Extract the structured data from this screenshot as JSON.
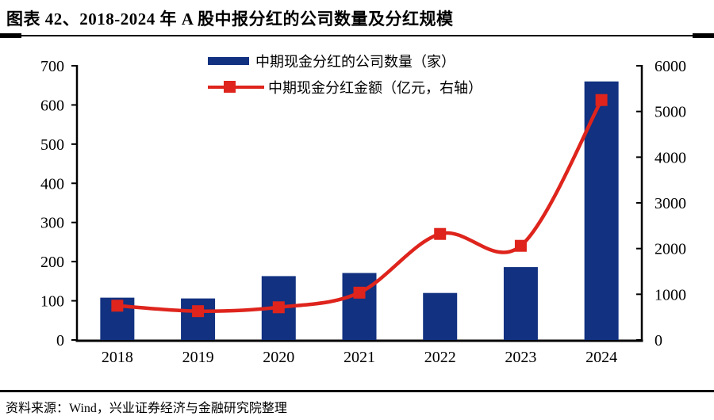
{
  "figure_title": "图表 42、2018-2024 年 A 股中报分红的公司数量及分红规模",
  "source_note": "资料来源：Wind，兴业证券经济与金融研究院整理",
  "colors": {
    "bar": "#123180",
    "line": "#de241c",
    "axis": "#000000",
    "text": "#000000"
  },
  "chart_data": {
    "type": "bar+line",
    "title": "2018-2024 年 A 股中报分红的公司数量及分红规模",
    "categories": [
      "2018",
      "2019",
      "2020",
      "2021",
      "2022",
      "2023",
      "2024"
    ],
    "series": [
      {
        "name": "中期现金分红的公司数量（家）",
        "type": "bar",
        "axis": "left",
        "values": [
          108,
          106,
          163,
          171,
          120,
          186,
          660
        ]
      },
      {
        "name": "中期现金分红金额（亿元，右轴）",
        "type": "line",
        "axis": "right",
        "values": [
          750,
          630,
          715,
          1035,
          2320,
          2060,
          5250
        ]
      }
    ],
    "left_axis": {
      "min": 0,
      "max": 700,
      "step": 100,
      "ticks": [
        "0",
        "100",
        "200",
        "300",
        "400",
        "500",
        "600",
        "700"
      ]
    },
    "right_axis": {
      "min": 0,
      "max": 6000,
      "step": 1000,
      "ticks": [
        "0",
        "1000",
        "2000",
        "3000",
        "4000",
        "5000",
        "6000"
      ]
    },
    "legend_position": "top-center",
    "grid": false
  }
}
